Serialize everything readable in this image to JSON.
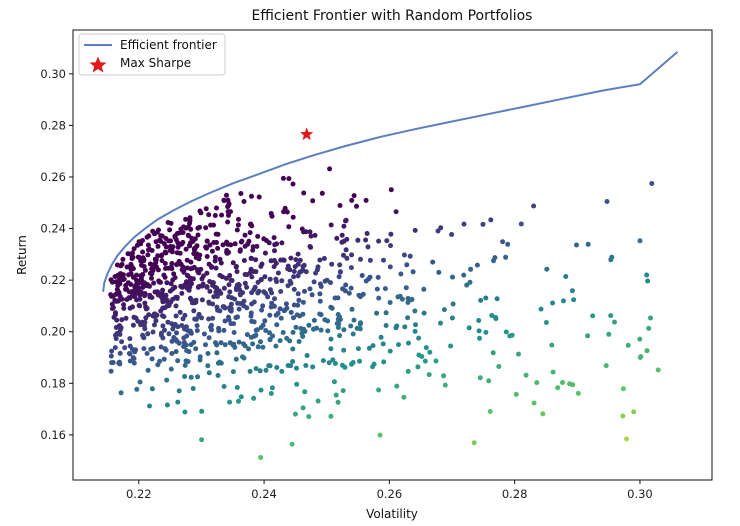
{
  "chart_data": {
    "type": "scatter",
    "title": "Efficient Frontier with Random Portfolios",
    "xlabel": "Volatility",
    "ylabel": "Return",
    "xlim": [
      0.2095,
      0.3115
    ],
    "ylim": [
      0.1425,
      0.317
    ],
    "xticks": [
      "0.22",
      "0.24",
      "0.26",
      "0.28",
      "0.30"
    ],
    "yticks": [
      "0.16",
      "0.18",
      "0.20",
      "0.22",
      "0.24",
      "0.26",
      "0.28",
      "0.30"
    ],
    "grid": false,
    "legend": {
      "placement": "top-left",
      "entries": [
        "Efficient frontier",
        "Max Sharpe"
      ]
    },
    "colormap": "viridis",
    "colormap_stops": [
      "#440154",
      "#3b528b",
      "#21918c",
      "#5ec962",
      "#fde725"
    ],
    "frontier_color": "#5b7fbf",
    "max_sharpe_color": "#e31a1c",
    "series": [
      {
        "name": "Efficient frontier",
        "type": "line",
        "x": [
          0.2143,
          0.2145,
          0.215,
          0.2157,
          0.2166,
          0.2178,
          0.2192,
          0.221,
          0.223,
          0.2255,
          0.2283,
          0.2315,
          0.235,
          0.239,
          0.2435,
          0.248,
          0.253,
          0.2585,
          0.264,
          0.27,
          0.276,
          0.282,
          0.288,
          0.294,
          0.3,
          0.306
        ],
        "y": [
          0.2155,
          0.219,
          0.2225,
          0.226,
          0.2295,
          0.233,
          0.2365,
          0.24,
          0.2435,
          0.247,
          0.2505,
          0.254,
          0.2575,
          0.261,
          0.265,
          0.2685,
          0.272,
          0.2755,
          0.2785,
          0.2815,
          0.2845,
          0.2875,
          0.2905,
          0.2935,
          0.296,
          0.3085
        ]
      },
      {
        "name": "Max Sharpe",
        "type": "marker",
        "x": [
          0.2468
        ],
        "y": [
          0.2765
        ]
      }
    ],
    "random_portfolios": {
      "count": 1100,
      "seed": 7,
      "x_range": [
        0.2155,
        0.306
      ],
      "y_range": [
        0.15,
        0.28
      ]
    }
  }
}
